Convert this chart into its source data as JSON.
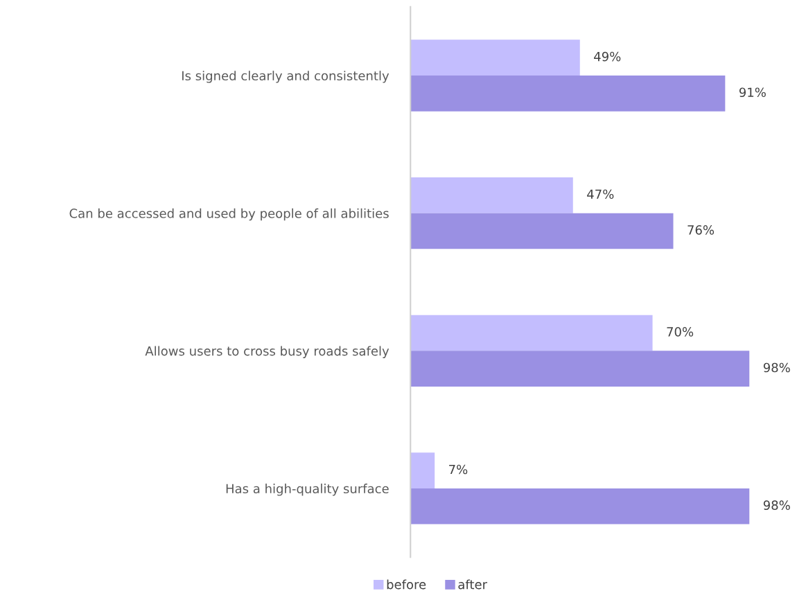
{
  "chart_data": {
    "type": "bar",
    "orientation": "horizontal",
    "categories": [
      "Is signed clearly and consistently",
      "Can be accessed and used by people of all abilities",
      "Allows users to cross busy roads safely",
      "Has a high-quality surface"
    ],
    "series": [
      {
        "name": "before",
        "color": "#c3bdfe",
        "values": [
          49,
          47,
          70,
          7
        ],
        "value_labels": [
          "49%",
          "47%",
          "70%",
          "7%"
        ]
      },
      {
        "name": "after",
        "color": "#9a90e3",
        "values": [
          91,
          76,
          98,
          98
        ],
        "value_labels": [
          "91%",
          "76%",
          "98%",
          "98%"
        ]
      }
    ],
    "legend": "bottom",
    "grid": false
  }
}
